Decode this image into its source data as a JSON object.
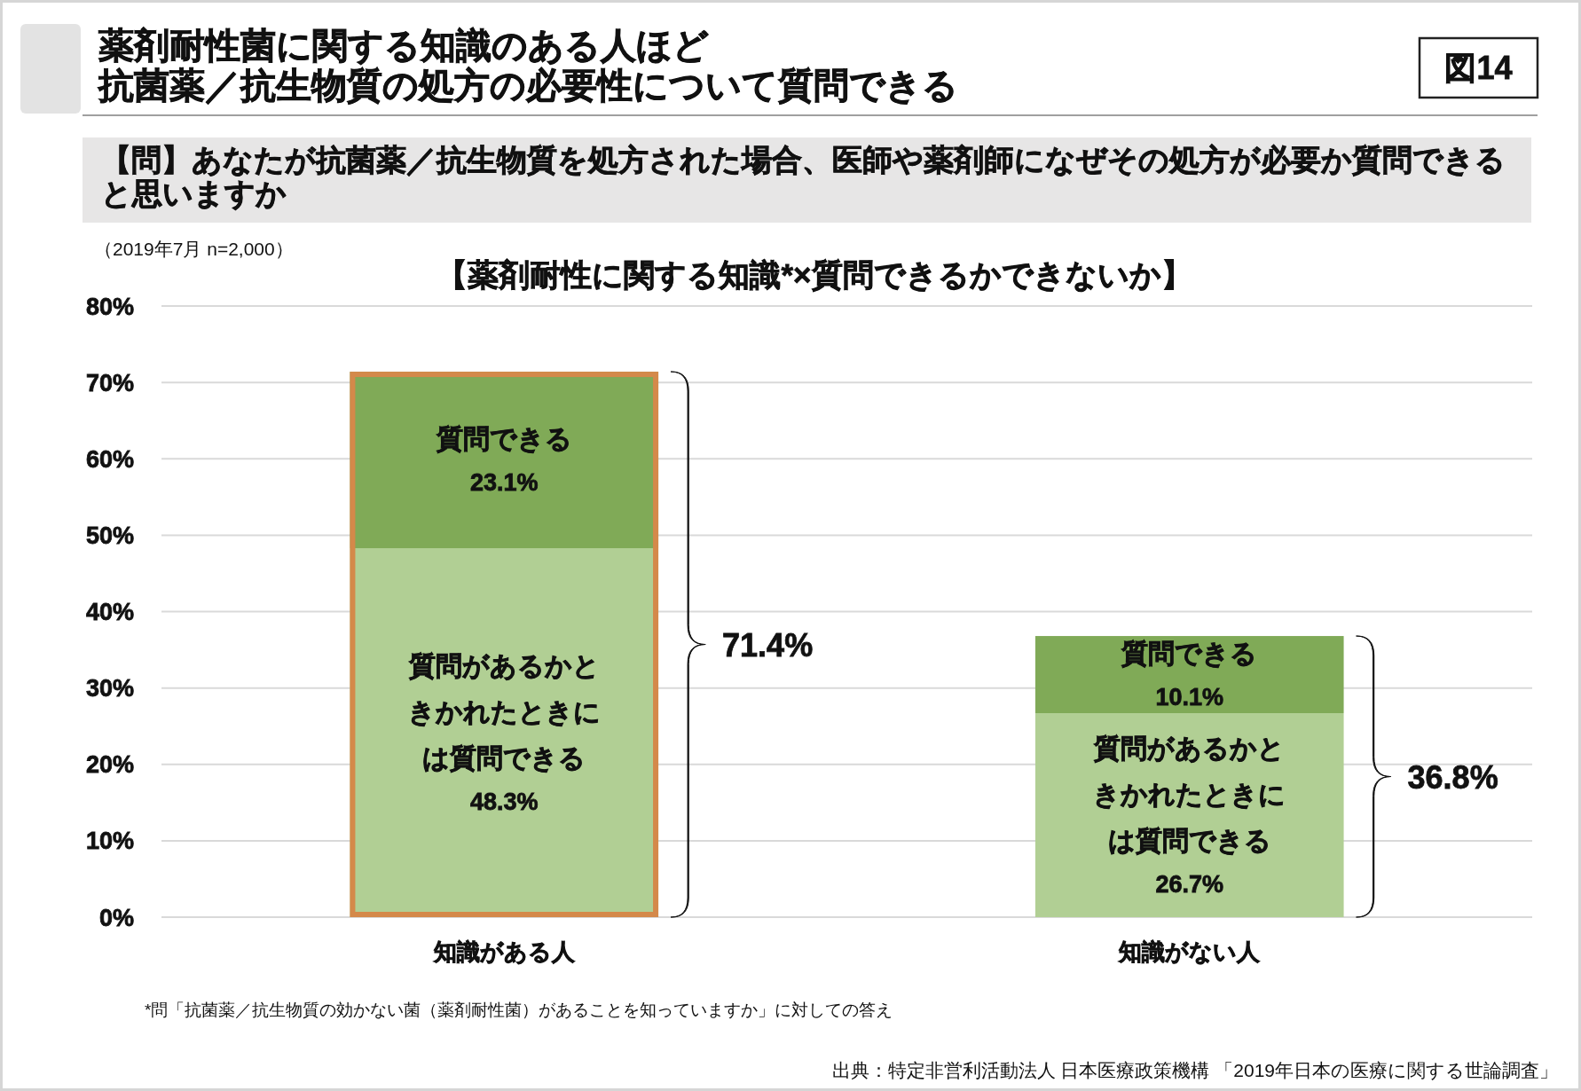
{
  "chart_data": {
    "type": "bar",
    "title": "薬剤耐性菌に関する知識のある人ほど抗菌薬／抗生物質の処方の必要性について質問できる",
    "subtitle": "【問】あなたが抗菌薬／抗生物質を処方された場合、医師や薬剤師になぜその処方が必要か質問できると思いますか",
    "annotations": [
      "図14",
      "（2019年7月 n=2,000）",
      "【薬剤耐性に関する知識*×質問できるかできないか】",
      "*問「抗菌薬／抗生物質の効かない菌（薬剤耐性菌）があることを知っていますか」に対しての答え",
      "出典：特定非営利活動法人 日本医療政策機構 「2019年日本の医療に関する世論調査」"
    ],
    "categories": [
      "知識がある人",
      "知識がない人"
    ],
    "series": [
      {
        "name": "質問があるかときかれたときには質問できる",
        "color": "#b1cf94",
        "values": [
          48.3,
          26.7
        ],
        "value_labels": [
          "48.3%",
          "26.7%"
        ]
      },
      {
        "name": "質問できる",
        "color": "#80aa57",
        "values": [
          23.1,
          10.1
        ],
        "value_labels": [
          "23.1%",
          "10.1%"
        ]
      }
    ],
    "stacked": true,
    "totals": [
      "71.4%",
      "36.8%"
    ],
    "ylim": [
      0,
      80
    ],
    "yticks": [
      {
        "value": 0,
        "label": "0%"
      },
      {
        "value": 10,
        "label": "10%"
      },
      {
        "value": 20,
        "label": "20%"
      },
      {
        "value": 30,
        "label": "30%"
      },
      {
        "value": 40,
        "label": "40%"
      },
      {
        "value": 50,
        "label": "50%"
      },
      {
        "value": 60,
        "label": "60%"
      },
      {
        "value": 70,
        "label": "70%"
      },
      {
        "value": 80,
        "label": "80%"
      }
    ],
    "grid": "y"
  }
}
